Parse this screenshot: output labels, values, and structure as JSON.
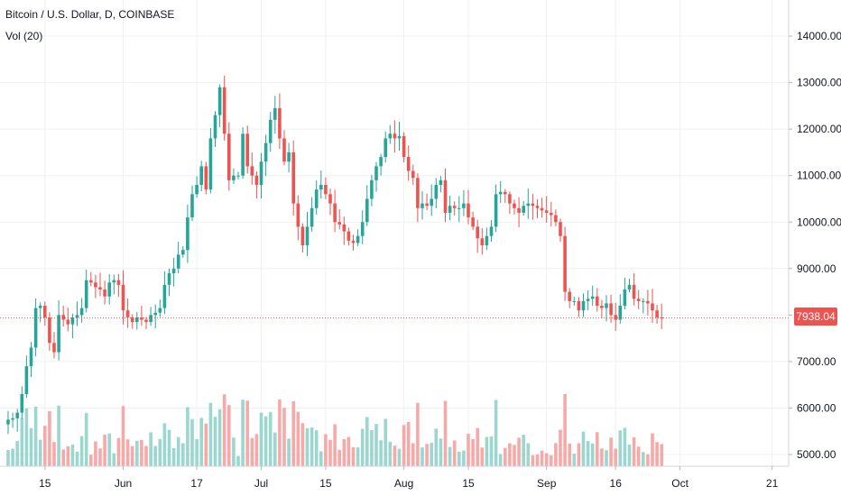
{
  "header": {
    "symbol_line": "Bitcoin / U.S. Dollar, D, COINBASE",
    "volume_line": "Vol (20)"
  },
  "colors": {
    "up": "#26a69a",
    "down": "#ef5350",
    "vol_up": "#9bd6cf",
    "vol_down": "#f7a9a7",
    "grid": "#eef0f3",
    "axis_text": "#131722",
    "last_price": "#ef5350"
  },
  "chart_data": {
    "type": "candlestick",
    "title": "Bitcoin / U.S. Dollar, D, COINBASE",
    "last_price": 7938.04,
    "last_price_label": "7938.04",
    "y_range": [
      4850,
      14600
    ],
    "y_ticks": [
      {
        "value": 5000,
        "label": "5000.00"
      },
      {
        "value": 6000,
        "label": "6000.00"
      },
      {
        "value": 7000,
        "label": "7000.00"
      },
      {
        "value": 8000,
        "label": "8000.00"
      },
      {
        "value": 9000,
        "label": "9000.00"
      },
      {
        "value": 10000,
        "label": "10000.00"
      },
      {
        "value": 11000,
        "label": "11000.00"
      },
      {
        "value": 12000,
        "label": "12000.00"
      },
      {
        "value": 13000,
        "label": "13000.00"
      },
      {
        "value": 14000,
        "label": "14000.00"
      }
    ],
    "x_ticks": [
      {
        "day": 8,
        "label": "15"
      },
      {
        "day": 25,
        "label": "Jun"
      },
      {
        "day": 41,
        "label": "17"
      },
      {
        "day": 55,
        "label": "Jul"
      },
      {
        "day": 69,
        "label": "15"
      },
      {
        "day": 86,
        "label": "Aug"
      },
      {
        "day": 100,
        "label": "15"
      },
      {
        "day": 117,
        "label": "Sep"
      },
      {
        "day": 132,
        "label": "16"
      },
      {
        "day": 146,
        "label": "Oct"
      },
      {
        "day": 166,
        "label": "21"
      }
    ],
    "volume_label": "Vol (20)",
    "closes": [
      5750,
      5780,
      5900,
      6300,
      6900,
      7300,
      8150,
      8200,
      7950,
      7400,
      7200,
      8000,
      7900,
      7800,
      7950,
      8000,
      8150,
      8750,
      8700,
      8600,
      8550,
      8400,
      8700,
      8750,
      8650,
      8100,
      7950,
      7850,
      7950,
      7900,
      7850,
      8000,
      8050,
      8150,
      8650,
      8900,
      9000,
      9300,
      9400,
      10100,
      10600,
      10800,
      11200,
      10700,
      11800,
      12300,
      12900,
      11900,
      10900,
      11000,
      11000,
      11900,
      11200,
      11000,
      10800,
      11300,
      11700,
      12200,
      12450,
      11800,
      11300,
      11500,
      10400,
      9900,
      9500,
      9900,
      10300,
      10700,
      10800,
      10600,
      10400,
      10000,
      9950,
      9800,
      9600,
      9550,
      9700,
      10000,
      10500,
      10900,
      11200,
      11400,
      11800,
      11900,
      11800,
      11850,
      11400,
      11100,
      10950,
      10300,
      10400,
      10350,
      10500,
      10800,
      10900,
      10200,
      10350,
      10300,
      10300,
      10400,
      10100,
      9900,
      9650,
      9500,
      9700,
      9900,
      10600,
      10650,
      10600,
      10400,
      10300,
      10200,
      10350,
      10400,
      10350,
      10300,
      10250,
      10200,
      10150,
      10000,
      9700,
      8500,
      8300,
      8300,
      8100,
      8300,
      8350,
      8400,
      8200,
      8150,
      8250,
      8000,
      7900,
      8200,
      8550,
      8650,
      8350,
      8300,
      8300,
      8250,
      8100,
      7950,
      7938
    ]
  }
}
